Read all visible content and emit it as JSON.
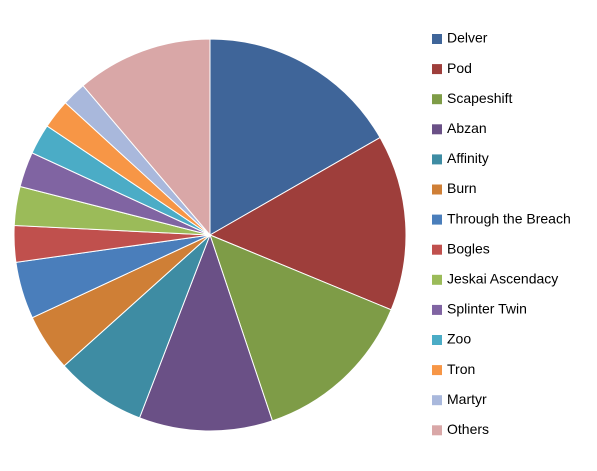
{
  "chart_data": {
    "type": "pie",
    "categories": [
      "Delver",
      "Pod",
      "Scapeshift",
      "Abzan",
      "Affinity",
      "Burn",
      "Through the Breach",
      "Bogles",
      "Jeskai Ascendacy",
      "Splinter Twin",
      "Zoo",
      "Tron",
      "Martyr",
      "Others"
    ],
    "values": [
      16.7,
      14.5,
      13.6,
      11,
      7.5,
      4.7,
      4.7,
      3,
      3.2,
      2.9,
      2.5,
      2.4,
      2,
      11.2
    ],
    "colors": [
      "#3f6599",
      "#9e3e3b",
      "#7e9c47",
      "#6a5086",
      "#3e8ca3",
      "#cf7f36",
      "#4a7ebb",
      "#c0504d",
      "#9bbb59",
      "#8064a2",
      "#4bacc6",
      "#f79646",
      "#a9b8dc",
      "#d9a7a7"
    ],
    "legend": "right"
  }
}
